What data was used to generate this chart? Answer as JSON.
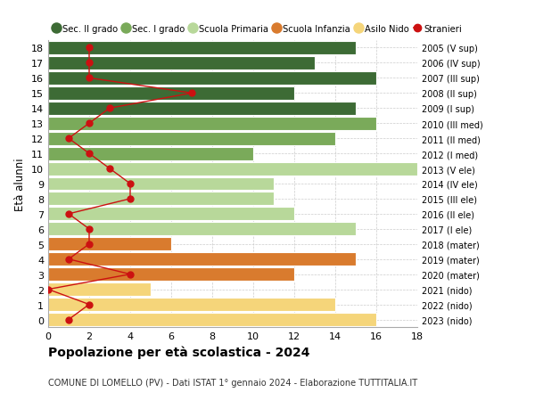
{
  "ages": [
    18,
    17,
    16,
    15,
    14,
    13,
    12,
    11,
    10,
    9,
    8,
    7,
    6,
    5,
    4,
    3,
    2,
    1,
    0
  ],
  "labels_right": [
    "2005 (V sup)",
    "2006 (IV sup)",
    "2007 (III sup)",
    "2008 (II sup)",
    "2009 (I sup)",
    "2010 (III med)",
    "2011 (II med)",
    "2012 (I med)",
    "2013 (V ele)",
    "2014 (IV ele)",
    "2015 (III ele)",
    "2016 (II ele)",
    "2017 (I ele)",
    "2018 (mater)",
    "2019 (mater)",
    "2020 (mater)",
    "2021 (nido)",
    "2022 (nido)",
    "2023 (nido)"
  ],
  "bar_values": [
    15,
    13,
    16,
    12,
    15,
    16,
    14,
    10,
    18,
    11,
    11,
    12,
    15,
    6,
    15,
    12,
    5,
    14,
    16
  ],
  "bar_colors": [
    "#3d6b35",
    "#3d6b35",
    "#3d6b35",
    "#3d6b35",
    "#3d6b35",
    "#7aaa5a",
    "#7aaa5a",
    "#7aaa5a",
    "#b8d89a",
    "#b8d89a",
    "#b8d89a",
    "#b8d89a",
    "#b8d89a",
    "#d97b2e",
    "#d97b2e",
    "#d97b2e",
    "#f5d57a",
    "#f5d57a",
    "#f5d57a"
  ],
  "stranieri_values": [
    2,
    2,
    2,
    7,
    3,
    2,
    1,
    2,
    3,
    4,
    4,
    1,
    2,
    2,
    1,
    4,
    0,
    2,
    1
  ],
  "stranieri_color": "#cc1111",
  "legend_labels": [
    "Sec. II grado",
    "Sec. I grado",
    "Scuola Primaria",
    "Scuola Infanzia",
    "Asilo Nido",
    "Stranieri"
  ],
  "legend_colors": [
    "#3d6b35",
    "#7aaa5a",
    "#b8d89a",
    "#d97b2e",
    "#f5d57a",
    "#cc1111"
  ],
  "ylabel_left": "Età alunni",
  "title": "Popolazione per età scolastica - 2024",
  "subtitle": "COMUNE DI LOMELLO (PV) - Dati ISTAT 1° gennaio 2024 - Elaborazione TUTTITALIA.IT",
  "xlim": [
    0,
    18
  ],
  "ylim": [
    -0.5,
    18.5
  ],
  "grid_color": "#cccccc",
  "bar_height": 0.88
}
